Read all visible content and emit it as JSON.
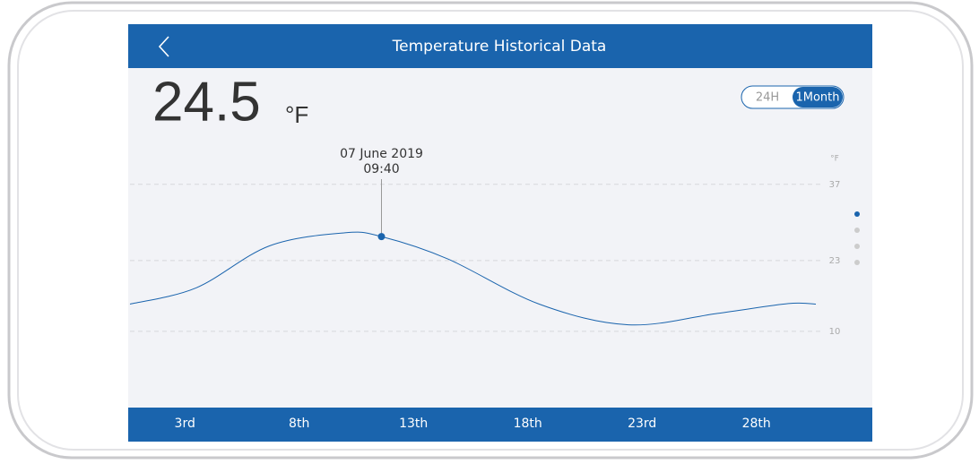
{
  "header": {
    "title": "Temperature Historical Data"
  },
  "reading": {
    "value": "24.5",
    "unit": "°F"
  },
  "range_toggle": {
    "options": [
      "24H",
      "1Month"
    ],
    "selected": 1
  },
  "tooltip": {
    "date": "07 June 2019",
    "time": "09:40"
  },
  "chart_data": {
    "type": "line",
    "y_unit": "°F",
    "x": [
      0.6,
      3.5,
      6.7,
      10.0,
      11.6,
      14.5,
      18.5,
      22.4,
      26.3,
      29.4,
      30.6
    ],
    "series": [
      {
        "color": "#1a64ad",
        "values": [
          15,
          18,
          25.7,
          28.1,
          27.4,
          23.3,
          15,
          11.2,
          13.3,
          15.1,
          15
        ]
      }
    ],
    "selected_point": 4,
    "xlim": [
      0.6,
      30.6
    ],
    "ylim": [
      -4,
      47
    ],
    "xticks": [
      {
        "value": 3,
        "label": "3rd"
      },
      {
        "value": 8,
        "label": "8th"
      },
      {
        "value": 13,
        "label": "13th"
      },
      {
        "value": 18,
        "label": "18th"
      },
      {
        "value": 23,
        "label": "23rd"
      },
      {
        "value": 28,
        "label": "28th"
      }
    ],
    "yticks": [
      10,
      23,
      37
    ],
    "grid": true
  }
}
